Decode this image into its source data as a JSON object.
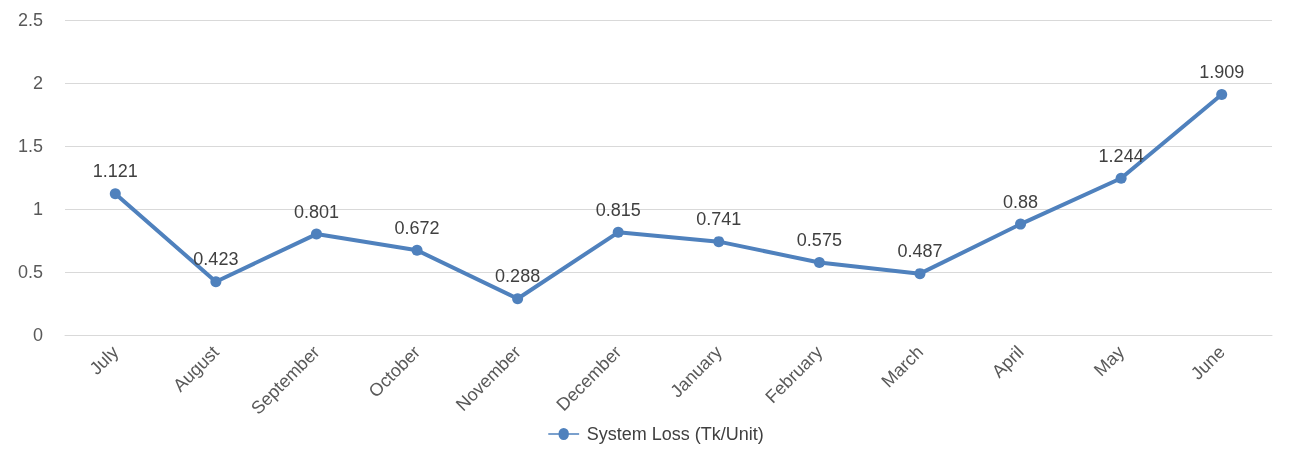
{
  "chart_data": {
    "type": "line",
    "categories": [
      "July",
      "August",
      "September",
      "October",
      "November",
      "December",
      "January",
      "February",
      "March",
      "April",
      "May",
      "June"
    ],
    "series": [
      {
        "name": "System Loss (Tk/Unit)",
        "color": "#4f81bd",
        "values": [
          1.121,
          0.423,
          0.801,
          0.672,
          0.288,
          0.815,
          0.741,
          0.575,
          0.487,
          0.88,
          1.244,
          1.909
        ]
      }
    ],
    "ylim": [
      0,
      2.5
    ],
    "yticks": [
      "0",
      "0.5",
      "1",
      "1.5",
      "2",
      "2.5"
    ],
    "grid": "y",
    "legend": "bottom",
    "marker": "circle",
    "line_style": "solid",
    "data_labels": true
  }
}
